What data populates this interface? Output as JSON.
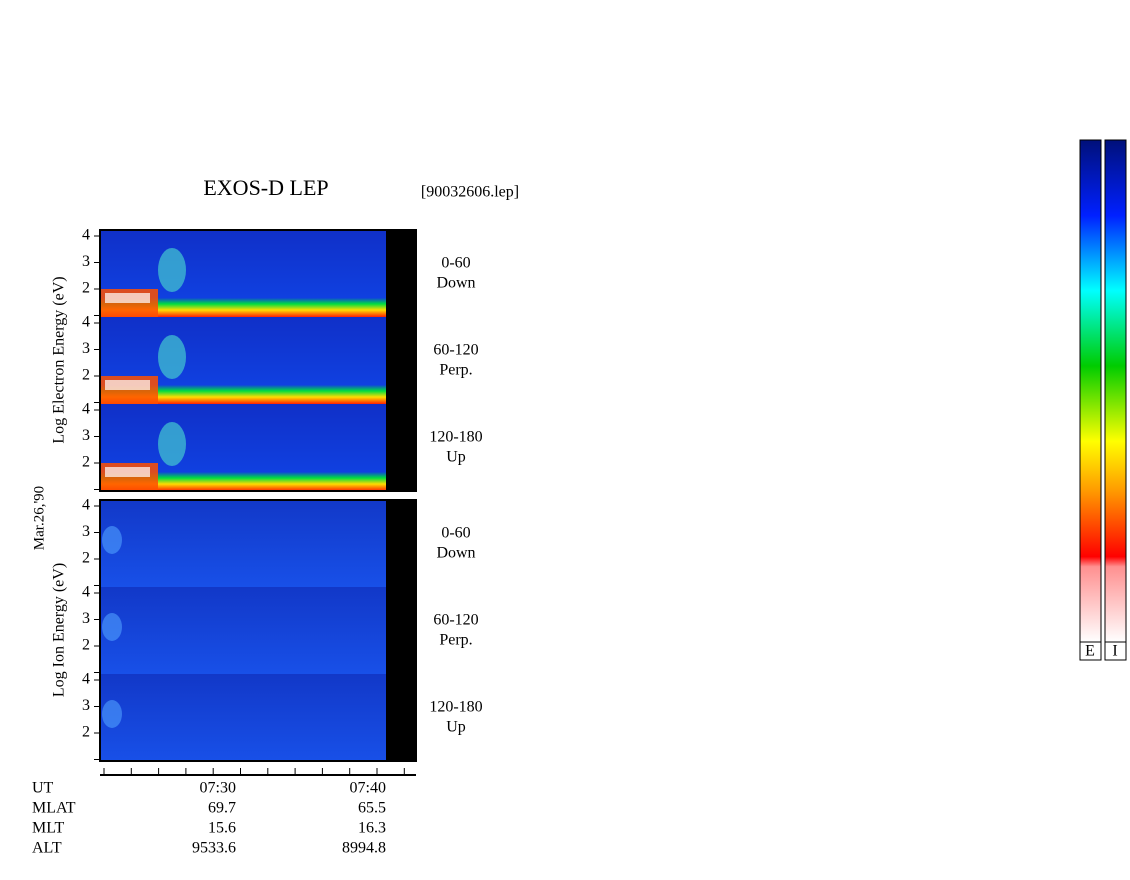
{
  "title": "EXOS-D LEP",
  "file": "[90032606.lep]",
  "date": "Mar.26,'90",
  "electron_label": "Log Electron Energy (eV)",
  "ion_label": "Log Ion Energy (eV)",
  "panels": [
    {
      "angle": "0-60",
      "dir": "Down",
      "yticks": [
        "4",
        "3",
        "2"
      ]
    },
    {
      "angle": "60-120",
      "dir": "Perp.",
      "yticks": [
        "4",
        "3",
        "2"
      ]
    },
    {
      "angle": "120-180",
      "dir": "Up",
      "yticks": [
        "4",
        "3",
        "2"
      ]
    },
    {
      "angle": "0-60",
      "dir": "Down",
      "yticks": [
        "4",
        "3",
        "2"
      ]
    },
    {
      "angle": "60-120",
      "dir": "Perp.",
      "yticks": [
        "4",
        "3",
        "2"
      ]
    },
    {
      "angle": "120-180",
      "dir": "Up",
      "yticks": [
        "4",
        "3",
        "2"
      ]
    }
  ],
  "time_axis": {
    "rows": [
      {
        "name": "UT",
        "values": [
          "07:30",
          "07:40"
        ]
      },
      {
        "name": "MLAT",
        "values": [
          "69.7",
          "65.5"
        ]
      },
      {
        "name": "MLT",
        "values": [
          "15.6",
          "16.3"
        ]
      },
      {
        "name": "ALT",
        "values": [
          "9533.6",
          "8994.8"
        ]
      }
    ]
  },
  "colorbar": [
    "E",
    "I"
  ]
}
